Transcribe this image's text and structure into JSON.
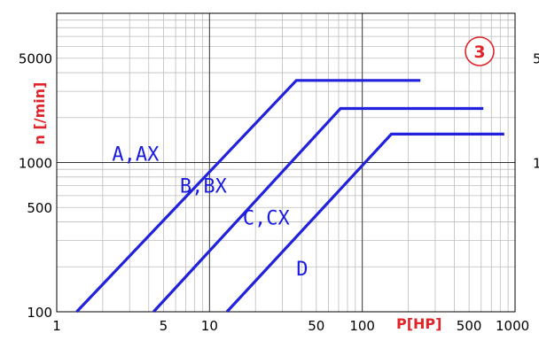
{
  "chart_data": {
    "type": "line",
    "xscale": "log",
    "yscale": "log",
    "xlim": [
      1,
      1000
    ],
    "ylim": [
      100,
      10000
    ],
    "grid": true,
    "xlabel": "P[HP]",
    "ylabel": "n [/min]",
    "x_ticks": [
      "1",
      "5",
      "10",
      "50",
      "100",
      "500",
      "1000"
    ],
    "y_ticks": [
      "100",
      "500",
      "1000",
      "5000"
    ],
    "right_tick_fragments": [
      "5",
      "1"
    ],
    "badge": "3",
    "series": [
      {
        "name": "A,AX",
        "x": [
          1.35,
          37,
          240
        ],
        "y": [
          100,
          3550,
          3550
        ]
      },
      {
        "name": "B,BX",
        "x": [
          4.3,
          72,
          620
        ],
        "y": [
          100,
          2300,
          2300
        ]
      },
      {
        "name": "C,CX",
        "x": [
          13,
          155,
          850
        ],
        "y": [
          100,
          1550,
          1550
        ]
      },
      {
        "name": "D",
        "x": [],
        "y": []
      }
    ],
    "colors": {
      "line": "#2222dd",
      "axis_label": "#e0242a",
      "badge": "#e0242a",
      "label_text": "#1a1ae0"
    }
  }
}
